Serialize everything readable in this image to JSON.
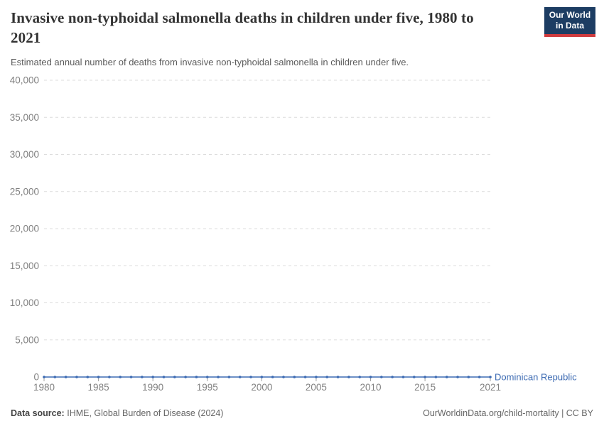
{
  "header": {
    "title": "Invasive non-typhoidal salmonella deaths in children under five, 1980 to 2021",
    "subtitle": "Estimated annual number of deaths from invasive non-typhoidal salmonella in children under five."
  },
  "logo": {
    "line1": "Our World",
    "line2": "in Data",
    "bg_color": "#1d3d63",
    "accent_color": "#cf3b3e"
  },
  "chart_data": {
    "type": "line",
    "title": "Invasive non-typhoidal salmonella deaths in children under five, 1980 to 2021",
    "xlabel": "",
    "ylabel": "",
    "x": [
      1980,
      1981,
      1982,
      1983,
      1984,
      1985,
      1986,
      1987,
      1988,
      1989,
      1990,
      1991,
      1992,
      1993,
      1994,
      1995,
      1996,
      1997,
      1998,
      1999,
      2000,
      2001,
      2002,
      2003,
      2004,
      2005,
      2006,
      2007,
      2008,
      2009,
      2010,
      2011,
      2012,
      2013,
      2014,
      2015,
      2016,
      2017,
      2018,
      2019,
      2020,
      2021
    ],
    "series": [
      {
        "name": "Dominican Republic",
        "color": "#3d6bb3",
        "values": [
          0,
          0,
          0,
          0,
          0,
          0,
          0,
          0,
          0,
          0,
          0,
          0,
          0,
          0,
          0,
          0,
          0,
          0,
          0,
          0,
          0,
          0,
          0,
          0,
          0,
          0,
          0,
          0,
          0,
          0,
          0,
          0,
          0,
          0,
          0,
          0,
          0,
          0,
          0,
          0,
          0,
          0
        ]
      }
    ],
    "ylim": [
      0,
      40000
    ],
    "yticks": [
      0,
      5000,
      10000,
      15000,
      20000,
      25000,
      30000,
      35000,
      40000
    ],
    "xticks": [
      1980,
      1985,
      1990,
      1995,
      2000,
      2005,
      2010,
      2015,
      2021
    ],
    "grid": "dashed-horizontal",
    "gridline_color": "#dcdcdc",
    "tick_label_color": "#818181",
    "legend": "end-of-line-label",
    "marker": "dot"
  },
  "footer": {
    "source_label": "Data source:",
    "source_text": "IHME, Global Burden of Disease (2024)",
    "attribution": "OurWorldinData.org/child-mortality | CC BY"
  }
}
